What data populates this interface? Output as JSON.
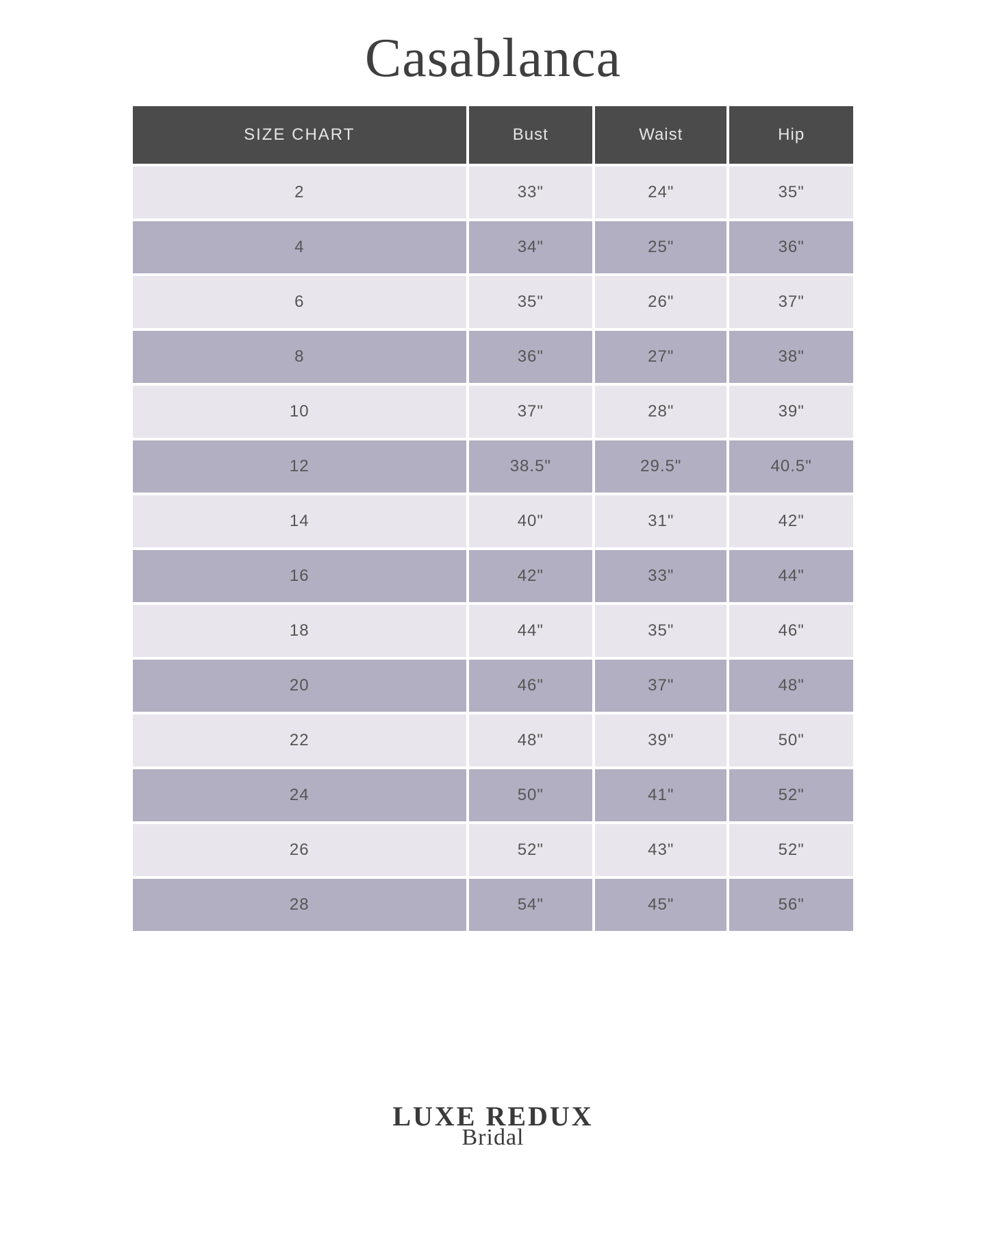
{
  "brand_title": "Casablanca",
  "table": {
    "header_bg": "#4b4b4b",
    "header_text_color": "#e6e6e6",
    "row_light_bg": "#e8e5ec",
    "row_dark_bg": "#b2afc2",
    "cell_text_color": "#555555",
    "columns": [
      "SIZE CHART",
      "Bust",
      "Waist",
      "Hip"
    ],
    "rows": [
      [
        "2",
        "33\"",
        "24\"",
        "35\""
      ],
      [
        "4",
        "34\"",
        "25\"",
        "36\""
      ],
      [
        "6",
        "35\"",
        "26\"",
        "37\""
      ],
      [
        "8",
        "36\"",
        "27\"",
        "38\""
      ],
      [
        "10",
        "37\"",
        "28\"",
        "39\""
      ],
      [
        "12",
        "38.5\"",
        "29.5\"",
        "40.5\""
      ],
      [
        "14",
        "40\"",
        "31\"",
        "42\""
      ],
      [
        "16",
        "42\"",
        "33\"",
        "44\""
      ],
      [
        "18",
        "44\"",
        "35\"",
        "46\""
      ],
      [
        "20",
        "46\"",
        "37\"",
        "48\""
      ],
      [
        "22",
        "48\"",
        "39\"",
        "50\""
      ],
      [
        "24",
        "50\"",
        "41\"",
        "52\""
      ],
      [
        "26",
        "52\"",
        "43\"",
        "52\""
      ],
      [
        "28",
        "54\"",
        "45\"",
        "56\""
      ]
    ]
  },
  "footer": {
    "main": "LUXE REDUX",
    "sub": "Bridal"
  }
}
